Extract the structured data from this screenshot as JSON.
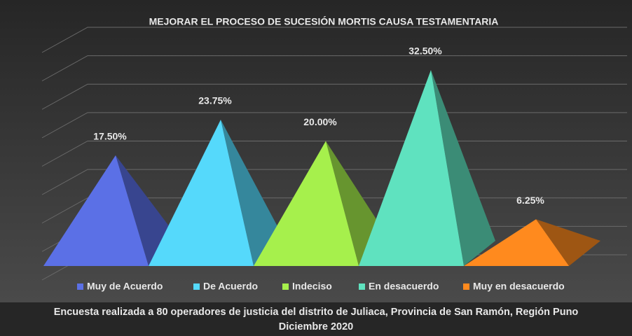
{
  "chart_data": {
    "type": "pyramid3d",
    "title": "MEJORAR EL PROCESO DE SUCESIÓN MORTIS CAUSA TESTAMENTARIA",
    "series": [
      {
        "name": "Muy de Acuerdo",
        "color": "#5b70e6",
        "values": [
          17.5
        ],
        "value_labels": [
          "17.50%"
        ]
      },
      {
        "name": "De Acuerdo",
        "color": "#55d9fb",
        "values": [
          23.75
        ],
        "value_labels": [
          "23.75%"
        ]
      },
      {
        "name": "Indeciso",
        "color": "#a6f04c",
        "values": [
          20
        ],
        "value_labels": [
          "20.00%"
        ]
      },
      {
        "name": "En desacuerdo",
        "color": "#5fe2bf",
        "values": [
          32.5
        ],
        "value_labels": [
          "32.50%"
        ]
      },
      {
        "name": "Muy en desacuerdo",
        "color": "#ff8a1e",
        "values": [
          6.25
        ],
        "value_labels": [
          "6.25%"
        ]
      }
    ],
    "ylim": [
      0,
      40
    ],
    "yticks": [
      0,
      5,
      10,
      15,
      20,
      25,
      30,
      35,
      40
    ],
    "grid": true,
    "caption": [
      "Encuesta realizada a 80 operadores de justicia del distrito de Juliaca, Provincia de San Ramón, Región Puno",
      "Diciembre 2020"
    ]
  }
}
